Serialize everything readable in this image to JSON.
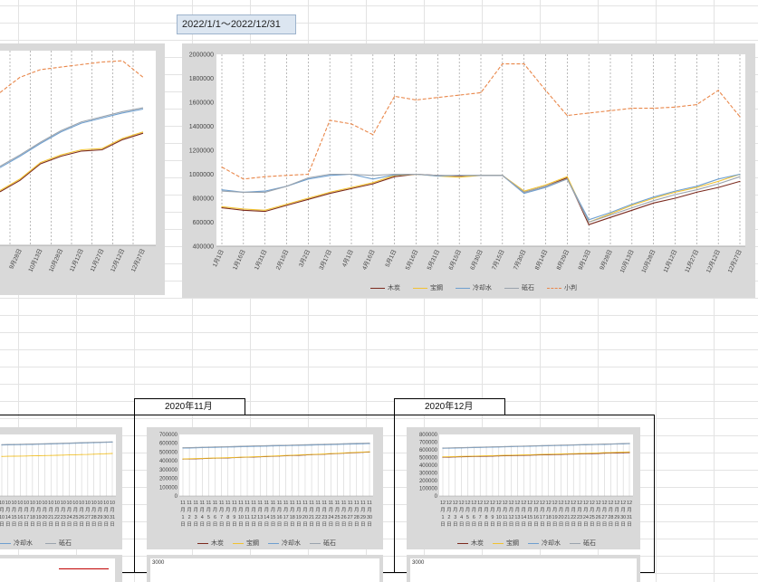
{
  "range_label": "2022/1/1～2022/12/31",
  "colors": {
    "mokutan": "#7b2a1e",
    "houzan": "#f1c232",
    "reikyakusui": "#6e9fcf",
    "toseki": "#9aa3ad",
    "koban": "#e9874a"
  },
  "chart_data": [
    {
      "id": "main-2022",
      "type": "line",
      "ylim": [
        400000,
        2000000
      ],
      "yticks": [
        "400000",
        "600000",
        "800000",
        "1000000",
        "1200000",
        "1400000",
        "1600000",
        "1800000",
        "2000000"
      ],
      "grid": "vertical-dashed",
      "legend_position": "bottom",
      "x": [
        "1月1日",
        "1月16日",
        "1月31日",
        "2月15日",
        "3月2日",
        "3月17日",
        "4月1日",
        "4月16日",
        "5月1日",
        "5月16日",
        "5月31日",
        "6月15日",
        "6月30日",
        "7月15日",
        "7月30日",
        "8月14日",
        "8月29日",
        "9月13日",
        "9月28日",
        "10月13日",
        "10月28日",
        "11月12日",
        "11月27日",
        "12月12日",
        "12月27日"
      ],
      "series": [
        {
          "name": "木炭",
          "key": "mokutan",
          "dash": false,
          "values": [
            720000,
            700000,
            690000,
            740000,
            790000,
            840000,
            880000,
            920000,
            980000,
            1000000,
            990000,
            985000,
            990000,
            990000,
            850000,
            900000,
            970000,
            580000,
            640000,
            700000,
            760000,
            800000,
            850000,
            890000,
            940000
          ]
        },
        {
          "name": "宝鋼",
          "key": "houzan",
          "dash": false,
          "values": [
            730000,
            710000,
            700000,
            750000,
            800000,
            850000,
            890000,
            930000,
            990000,
            1000000,
            985000,
            975000,
            990000,
            990000,
            860000,
            910000,
            980000,
            600000,
            670000,
            740000,
            800000,
            850000,
            890000,
            940000,
            1000000
          ]
        },
        {
          "name": "冷却水",
          "key": "reikyakusui",
          "dash": false,
          "values": [
            870000,
            850000,
            860000,
            900000,
            960000,
            990000,
            1000000,
            960000,
            995000,
            1000000,
            985000,
            990000,
            990000,
            990000,
            840000,
            890000,
            960000,
            620000,
            680000,
            750000,
            810000,
            860000,
            900000,
            960000,
            1000000
          ]
        },
        {
          "name": "砥石",
          "key": "toseki",
          "dash": false,
          "values": [
            860000,
            850000,
            850000,
            900000,
            970000,
            1000000,
            1000000,
            990000,
            1000000,
            1000000,
            990000,
            990000,
            990000,
            990000,
            850000,
            900000,
            960000,
            600000,
            660000,
            720000,
            780000,
            830000,
            870000,
            920000,
            980000
          ]
        },
        {
          "name": "小判",
          "key": "koban",
          "dash": true,
          "values": [
            1060000,
            960000,
            980000,
            990000,
            1000000,
            1450000,
            1420000,
            1330000,
            1650000,
            1620000,
            1640000,
            1660000,
            1680000,
            1920000,
            1920000,
            1700000,
            1490000,
            1510000,
            1530000,
            1550000,
            1550000,
            1560000,
            1580000,
            1700000,
            1480000
          ]
        }
      ]
    },
    {
      "id": "left-partial",
      "type": "line",
      "x": [
        "9月28日",
        "10月13日",
        "10月28日",
        "11月12日",
        "11月27日",
        "12月12日",
        "12月27日"
      ],
      "series": [
        {
          "name": "木炭",
          "key": "mokutan",
          "dash": false,
          "values": [
            910000,
            1040000,
            1100000,
            1140000,
            1150000,
            1230000,
            1280000
          ]
        },
        {
          "name": "宝鋼",
          "key": "houzan",
          "dash": false,
          "values": [
            920000,
            1050000,
            1110000,
            1150000,
            1160000,
            1240000,
            1290000
          ]
        },
        {
          "name": "冷却水",
          "key": "reikyakusui",
          "dash": false,
          "values": [
            1100000,
            1200000,
            1290000,
            1360000,
            1400000,
            1440000,
            1470000
          ]
        },
        {
          "name": "砥石",
          "key": "toseki",
          "dash": false,
          "values": [
            1110000,
            1210000,
            1300000,
            1370000,
            1410000,
            1450000,
            1480000
          ]
        },
        {
          "name": "小判",
          "key": "koban",
          "dash": true,
          "values": [
            1720000,
            1780000,
            1800000,
            1820000,
            1840000,
            1850000,
            1720000
          ]
        }
      ]
    },
    {
      "id": "month-nov",
      "type": "line",
      "title": "2020年11月",
      "ylim": [
        0,
        700000
      ],
      "yticks": [
        "0",
        "100000",
        "200000",
        "300000",
        "400000",
        "500000",
        "600000",
        "700000"
      ],
      "x": [
        "11月1日",
        "11月2日",
        "11月3日",
        "11月4日",
        "11月5日",
        "11月6日",
        "11月7日",
        "11月8日",
        "11月9日",
        "11月10日",
        "11月11日",
        "11月12日",
        "11月13日",
        "11月14日",
        "11月15日",
        "11月16日",
        "11月17日",
        "11月18日",
        "11月19日",
        "11月20日",
        "11月21日",
        "11月22日",
        "11月23日",
        "11月24日",
        "11月25日",
        "11月26日",
        "11月27日",
        "11月28日",
        "11月29日",
        "11月30日"
      ],
      "series": [
        {
          "name": "木炭",
          "key": "mokutan",
          "dash": false,
          "values": [
            420000,
            421000,
            423000,
            425000,
            428000,
            430000,
            431000,
            433000,
            436000,
            440000,
            442000,
            444000,
            446000,
            449000,
            452000,
            455000,
            458000,
            461000,
            463000,
            466000,
            470000,
            473000,
            476000,
            480000,
            483000,
            487000,
            490000,
            494000,
            497000,
            500000
          ]
        },
        {
          "name": "宝鋼",
          "key": "houzan",
          "dash": false,
          "values": [
            422000,
            424000,
            426000,
            428000,
            430000,
            432000,
            434000,
            436000,
            439000,
            442000,
            444000,
            447000,
            449000,
            452000,
            455000,
            458000,
            461000,
            464000,
            467000,
            470000,
            473000,
            476000,
            479000,
            483000,
            486000,
            490000,
            493000,
            497000,
            500000,
            503000
          ]
        },
        {
          "name": "冷却水",
          "key": "reikyakusui",
          "dash": false,
          "values": [
            545000,
            546000,
            548000,
            550000,
            552000,
            553000,
            555000,
            557000,
            558000,
            560000,
            562000,
            564000,
            565000,
            567000,
            569000,
            571000,
            572000,
            574000,
            576000,
            578000,
            579000,
            581000,
            583000,
            585000,
            587000,
            589000,
            590000,
            592000,
            594000,
            596000
          ]
        },
        {
          "name": "砥石",
          "key": "toseki",
          "dash": false,
          "values": [
            550000,
            551000,
            553000,
            555000,
            557000,
            559000,
            560000,
            562000,
            564000,
            566000,
            568000,
            570000,
            571000,
            573000,
            575000,
            577000,
            578000,
            580000,
            582000,
            584000,
            586000,
            588000,
            589000,
            591000,
            593000,
            595000,
            597000,
            599000,
            600000,
            602000
          ]
        }
      ]
    },
    {
      "id": "month-dec",
      "type": "line",
      "title": "2020年12月",
      "ylim": [
        0,
        800000
      ],
      "yticks": [
        "0",
        "100000",
        "200000",
        "300000",
        "400000",
        "500000",
        "600000",
        "700000",
        "800000"
      ],
      "x": [
        "12月1日",
        "12月2日",
        "12月3日",
        "12月4日",
        "12月5日",
        "12月6日",
        "12月7日",
        "12月8日",
        "12月9日",
        "12月10日",
        "12月11日",
        "12月12日",
        "12月13日",
        "12月14日",
        "12月15日",
        "12月16日",
        "12月17日",
        "12月18日",
        "12月19日",
        "12月20日",
        "12月21日",
        "12月22日",
        "12月23日",
        "12月24日",
        "12月25日",
        "12月26日",
        "12月27日",
        "12月28日",
        "12月29日",
        "12月30日",
        "12月31日"
      ],
      "series": [
        {
          "name": "木炭",
          "key": "mokutan",
          "dash": false,
          "values": [
            505000,
            506000,
            508000,
            510000,
            512000,
            514000,
            515000,
            517000,
            519000,
            521000,
            523000,
            525000,
            527000,
            529000,
            531000,
            533000,
            535000,
            537000,
            539000,
            541000,
            543000,
            545000,
            547000,
            549000,
            551000,
            553000,
            556000,
            558000,
            560000,
            562000,
            565000
          ]
        },
        {
          "name": "宝鋼",
          "key": "houzan",
          "dash": false,
          "values": [
            510000,
            511000,
            513000,
            515000,
            517000,
            519000,
            521000,
            523000,
            525000,
            527000,
            529000,
            531000,
            533000,
            535000,
            537000,
            539000,
            541000,
            543000,
            545000,
            547000,
            549000,
            551000,
            553000,
            555000,
            558000,
            560000,
            563000,
            565000,
            568000,
            570000,
            573000
          ]
        },
        {
          "name": "冷却水",
          "key": "reikyakusui",
          "dash": false,
          "values": [
            620000,
            621000,
            623000,
            625000,
            627000,
            629000,
            631000,
            633000,
            635000,
            637000,
            639000,
            641000,
            643000,
            645000,
            647000,
            649000,
            651000,
            653000,
            655000,
            657000,
            659000,
            661000,
            663000,
            665000,
            667000,
            669000,
            671000,
            673000,
            675000,
            677000,
            680000
          ]
        },
        {
          "name": "砥石",
          "key": "toseki",
          "dash": false,
          "values": [
            625000,
            626000,
            628000,
            630000,
            632000,
            634000,
            636000,
            638000,
            640000,
            642000,
            644000,
            646000,
            648000,
            650000,
            652000,
            654000,
            656000,
            658000,
            660000,
            662000,
            664000,
            666000,
            668000,
            670000,
            672000,
            674000,
            676000,
            678000,
            680000,
            682000,
            685000
          ]
        }
      ]
    },
    {
      "id": "month-oct-partial",
      "type": "line",
      "x": [
        "10月10日",
        "10月14日",
        "10月15日",
        "10月16日",
        "10月17日",
        "10月18日",
        "10月19日",
        "10月20日",
        "10月21日",
        "10月22日",
        "10月23日",
        "10月24日",
        "10月25日",
        "10月26日",
        "10月27日",
        "10月28日",
        "10月29日",
        "10月30日",
        "10月31日"
      ],
      "series": [
        {
          "name": "宝鋼",
          "key": "houzan",
          "dash": false,
          "values": [
            450000,
            452000,
            453000,
            454000,
            455000,
            457000,
            458000,
            460000,
            461000,
            463000,
            465000,
            467000,
            469000,
            471000,
            473000,
            476000,
            478000,
            481000,
            484000
          ]
        },
        {
          "name": "冷却水",
          "key": "reikyakusui",
          "dash": false,
          "values": [
            580000,
            582000,
            583000,
            584000,
            586000,
            587000,
            589000,
            590000,
            592000,
            594000,
            596000,
            598000,
            600000,
            602000,
            604000,
            606000,
            608000,
            610000,
            612000
          ]
        },
        {
          "name": "砥石",
          "key": "toseki",
          "dash": false,
          "values": [
            585000,
            587000,
            588000,
            589000,
            591000,
            592000,
            594000,
            595000,
            597000,
            599000,
            601000,
            603000,
            605000,
            607000,
            609000,
            611000,
            613000,
            615000,
            617000
          ]
        }
      ]
    }
  ],
  "legend_main": [
    "木炭",
    "宝鋼",
    "冷却水",
    "砥石",
    "小判"
  ],
  "legend_month": [
    "木炭",
    "宝鋼",
    "冷却水",
    "砥石"
  ],
  "legend_oct": [
    "冷却水",
    "砥石"
  ],
  "lower_ytick": "3000",
  "month_tabs": {
    "nov": "2020年11月",
    "dec": "2020年12月"
  },
  "day_suffix_row": "日"
}
